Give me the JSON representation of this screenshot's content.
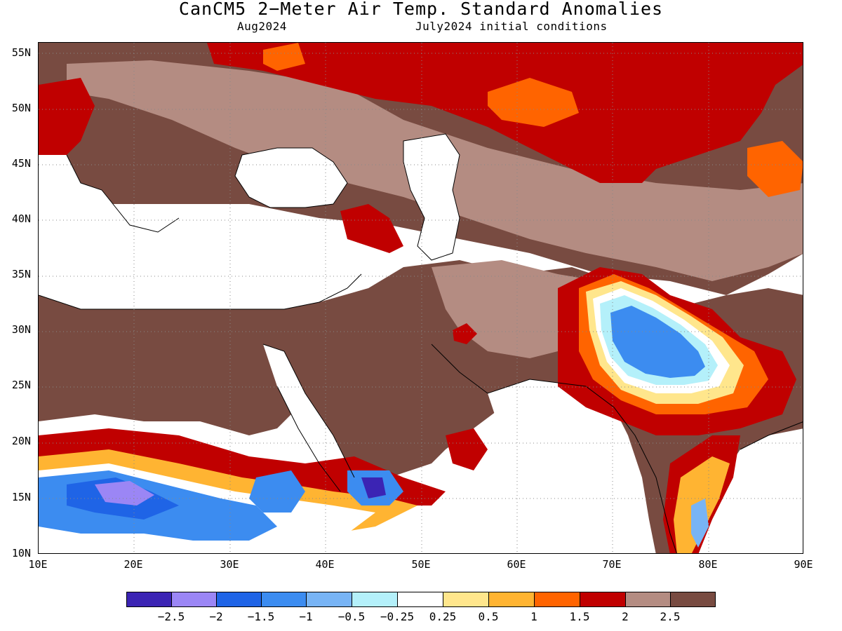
{
  "title": "CanCM5 2−Meter Air Temp. Standard Anomalies",
  "subtitle_left": "Aug2024",
  "subtitle_right": "July2024 initial conditions",
  "map": {
    "lon_range": [
      10,
      90
    ],
    "lat_range": [
      10,
      56
    ],
    "grid": true,
    "lat_labels": [
      "55N",
      "50N",
      "45N",
      "40N",
      "35N",
      "30N",
      "25N",
      "20N",
      "15N",
      "10N"
    ],
    "lon_labels": [
      "10E",
      "20E",
      "30E",
      "40E",
      "50E",
      "60E",
      "70E",
      "80E",
      "90E"
    ]
  },
  "colorbar": {
    "colors": [
      "#3b24b4",
      "#9b86f5",
      "#1f64e6",
      "#3c8cf0",
      "#78b4f5",
      "#b4f0fa",
      "#ffffff",
      "#ffe68c",
      "#ffb432",
      "#ff6400",
      "#c00000",
      "#b48c82",
      "#784b41"
    ],
    "labels": [
      "−2.5",
      "−2",
      "−1.5",
      "−1",
      "−0.5",
      "−0.25",
      "0.25",
      "0.5",
      "1",
      "1.5",
      "2",
      "2.5"
    ]
  }
}
